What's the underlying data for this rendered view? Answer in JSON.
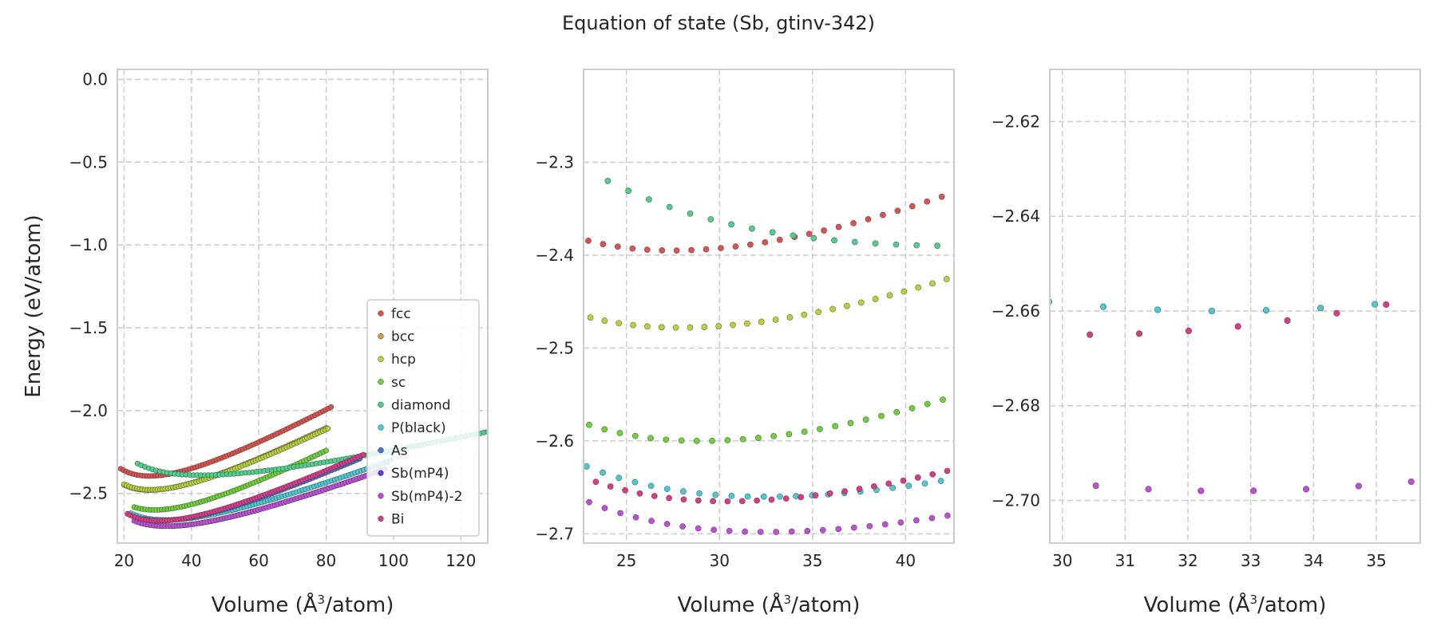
{
  "figure": {
    "title": "Equation of state (Sb, gtinv-342)"
  },
  "colors": {
    "fcc": "#d9534f",
    "bcc": "#c8a24a",
    "hcp": "#b5d43a",
    "sc": "#6fd13a",
    "diamond": "#4fd08a",
    "P(black)": "#4cc9d4",
    "As": "#4a6fd8",
    "Sb(mP4)": "#5a3fd8",
    "Sb(mP4)-2": "#c04fd8",
    "Bi": "#d63c8a"
  },
  "legend": {
    "placement": "lower-right",
    "entries": [
      "fcc",
      "bcc",
      "hcp",
      "sc",
      "diamond",
      "P(black)",
      "As",
      "Sb(mP4)",
      "Sb(mP4)-2",
      "Bi"
    ]
  },
  "chart_data": [
    {
      "type": "scatter",
      "xlabel_main": "Volume (Å",
      "xlabel_sup": "3",
      "xlabel_tail": "/atom)",
      "ylabel": "Energy (eV/atom)",
      "xlim": [
        18,
        128
      ],
      "ylim": [
        -2.8,
        0.06
      ],
      "xticks": [
        20,
        40,
        60,
        80,
        100,
        120
      ],
      "xtick_labels": [
        "20",
        "40",
        "60",
        "80",
        "100",
        "120"
      ],
      "yticks": [
        -2.5,
        -2.0,
        -1.5,
        -1.0,
        -0.5,
        0.0
      ],
      "ytick_labels": [
        "−2.5",
        "−2.0",
        "−1.5",
        "−1.0",
        "−0.5",
        "0.0"
      ],
      "grid": true,
      "marker_radius": 3.2,
      "series": [
        {
          "name": "fcc",
          "sampling": {
            "v0": 27.5,
            "e0": -2.395,
            "b": 0.32,
            "vmin": 19,
            "vmax": 81.5,
            "n": 80
          }
        },
        {
          "name": "bcc",
          "sampling": {
            "v0": 27.5,
            "e0": -2.48,
            "b": 0.3,
            "vmin": 20,
            "vmax": 80,
            "n": 70
          }
        },
        {
          "name": "hcp",
          "sampling": {
            "v0": 27.9,
            "e0": -2.478,
            "b": 0.3,
            "vmin": 20,
            "vmax": 80.5,
            "n": 80
          }
        },
        {
          "name": "sc",
          "sampling": {
            "v0": 29,
            "e0": -2.6,
            "b": 0.32,
            "vmin": 23,
            "vmax": 80,
            "n": 70
          }
        },
        {
          "name": "diamond",
          "sampling": {
            "v0": 43,
            "e0": -2.39,
            "b": 0.2,
            "vmin": 24,
            "vmax": 128,
            "n": 95
          }
        },
        {
          "name": "P(black)",
          "sampling": {
            "v0": 32.5,
            "e0": -2.66,
            "b": 0.26,
            "vmin": 22,
            "vmax": 99,
            "n": 90
          }
        },
        {
          "name": "As",
          "sampling": {
            "v0": 31,
            "e0": -2.665,
            "b": 0.3,
            "vmin": 26,
            "vmax": 90,
            "n": 70
          }
        },
        {
          "name": "Sb(mP4)",
          "sampling": {
            "v0": 32.6,
            "e0": -2.698,
            "b": 0.26,
            "vmin": 25,
            "vmax": 97,
            "n": 80
          }
        },
        {
          "name": "Sb(mP4)-2",
          "sampling": {
            "v0": 32.6,
            "e0": -2.698,
            "b": 0.26,
            "vmin": 23,
            "vmax": 97.5,
            "n": 90
          }
        },
        {
          "name": "Bi",
          "sampling": {
            "v0": 30.4,
            "e0": -2.665,
            "b": 0.3,
            "vmin": 21,
            "vmax": 91,
            "n": 90
          }
        }
      ]
    },
    {
      "type": "scatter",
      "xlabel_main": "Volume (Å",
      "xlabel_sup": "3",
      "xlabel_tail": "/atom)",
      "ylabel": "",
      "xlim": [
        22.7,
        42.6
      ],
      "ylim": [
        -2.71,
        -2.2
      ],
      "xticks": [
        25,
        30,
        35,
        40
      ],
      "xtick_labels": [
        "25",
        "30",
        "35",
        "40"
      ],
      "yticks": [
        -2.7,
        -2.6,
        -2.5,
        -2.4,
        -2.3
      ],
      "ytick_labels": [
        "−2.7",
        "−2.6",
        "−2.5",
        "−2.4",
        "−2.3"
      ],
      "grid": true,
      "marker_radius": 3.6,
      "series": [
        {
          "name": "fcc",
          "sampling": {
            "v0": 27.5,
            "e0": -2.395,
            "b": 0.32,
            "vmin": 19,
            "vmax": 81.5,
            "n": 80
          }
        },
        {
          "name": "hcp",
          "sampling": {
            "v0": 27.9,
            "e0": -2.478,
            "b": 0.3,
            "vmin": 20,
            "vmax": 80.5,
            "n": 80
          }
        },
        {
          "name": "sc",
          "sampling": {
            "v0": 29,
            "e0": -2.6,
            "b": 0.32,
            "vmin": 23,
            "vmax": 80,
            "n": 70
          }
        },
        {
          "name": "diamond",
          "sampling": {
            "v0": 43,
            "e0": -2.39,
            "b": 0.2,
            "vmin": 24,
            "vmax": 128,
            "n": 95
          }
        },
        {
          "name": "P(black)",
          "sampling": {
            "v0": 32.5,
            "e0": -2.66,
            "b": 0.26,
            "vmin": 22,
            "vmax": 99,
            "n": 90
          }
        },
        {
          "name": "Sb(mP4)-2",
          "sampling": {
            "v0": 32.6,
            "e0": -2.698,
            "b": 0.26,
            "vmin": 23,
            "vmax": 97.5,
            "n": 90
          }
        },
        {
          "name": "Bi",
          "sampling": {
            "v0": 30.4,
            "e0": -2.665,
            "b": 0.3,
            "vmin": 21,
            "vmax": 91,
            "n": 90
          }
        }
      ]
    },
    {
      "type": "scatter",
      "xlabel_main": "Volume (Å",
      "xlabel_sup": "3",
      "xlabel_tail": "/atom)",
      "ylabel": "",
      "xlim": [
        29.8,
        35.7
      ],
      "ylim": [
        -2.709,
        -2.609
      ],
      "xticks": [
        30,
        31,
        32,
        33,
        34,
        35
      ],
      "xtick_labels": [
        "30",
        "31",
        "32",
        "33",
        "34",
        "35"
      ],
      "yticks": [
        -2.7,
        -2.68,
        -2.66,
        -2.64,
        -2.62
      ],
      "ytick_labels": [
        "−2.70",
        "−2.68",
        "−2.66",
        "−2.64",
        "−2.62"
      ],
      "grid": true,
      "marker_radius": 3.8,
      "series": [
        {
          "name": "P(black)",
          "sampling": {
            "v0": 32.5,
            "e0": -2.66,
            "b": 0.26,
            "vmin": 22,
            "vmax": 99,
            "n": 90
          }
        },
        {
          "name": "Sb(mP4)-2",
          "sampling": {
            "v0": 32.6,
            "e0": -2.698,
            "b": 0.26,
            "vmin": 23,
            "vmax": 97.5,
            "n": 90
          }
        },
        {
          "name": "Bi",
          "sampling": {
            "v0": 30.4,
            "e0": -2.665,
            "b": 0.3,
            "vmin": 21,
            "vmax": 91,
            "n": 90
          }
        }
      ]
    }
  ]
}
